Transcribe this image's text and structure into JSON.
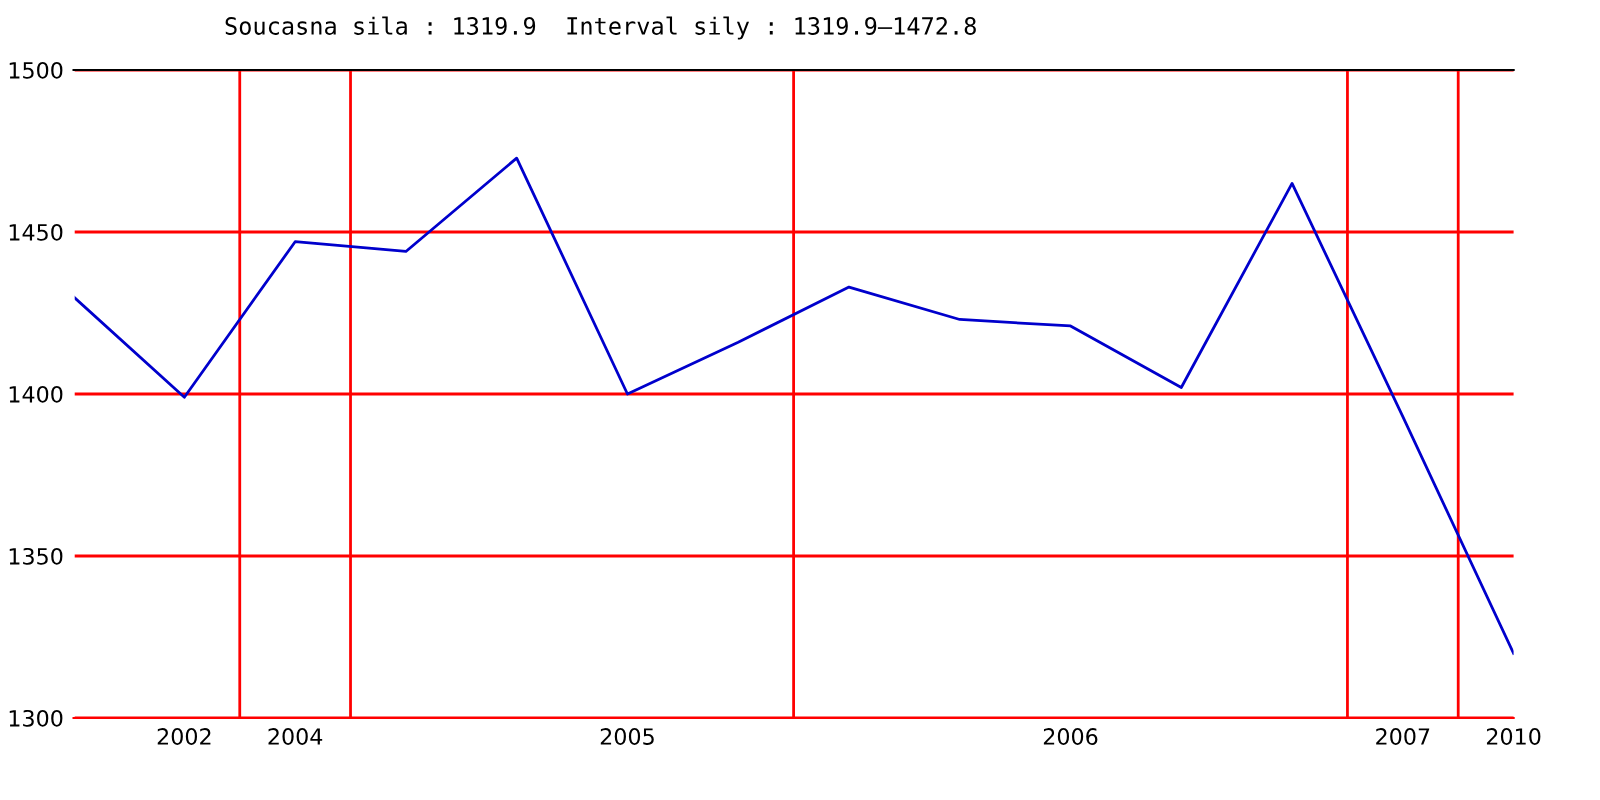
{
  "chart_data": {
    "type": "line",
    "title": "Soucasna sila : 1319.9  Interval sily : 1319.9–1472.8",
    "categories": [
      null,
      "2002",
      "2004",
      null,
      null,
      "2005",
      null,
      null,
      null,
      "2006",
      null,
      null,
      "2007",
      "2010"
    ],
    "series": [
      {
        "color": "#0000cc",
        "values": [
          1430,
          1399,
          1447,
          1444,
          1472.8,
          1400,
          1416,
          1433,
          1423,
          1421,
          1402,
          1465,
          1393,
          1319.9
        ]
      }
    ],
    "ylim": [
      1300,
      1500
    ],
    "yticks": [
      1300,
      1350,
      1400,
      1450,
      1500
    ],
    "grid": "y",
    "marker": "none",
    "line_style": "solid"
  }
}
